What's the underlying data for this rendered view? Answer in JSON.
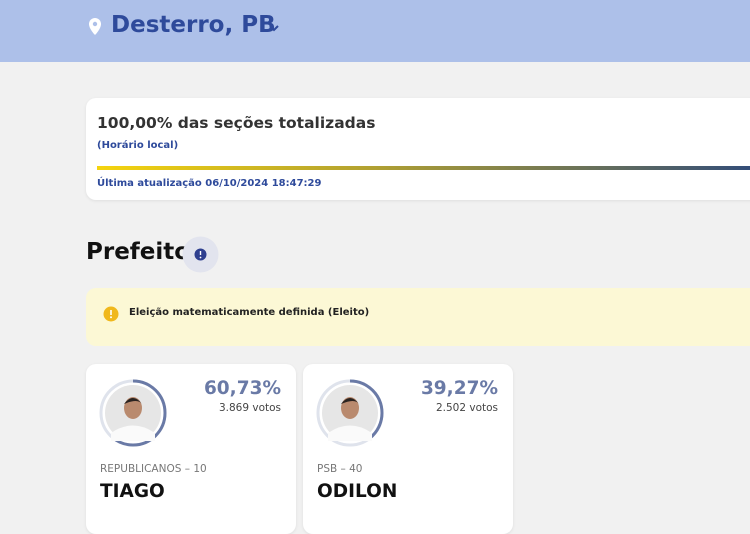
{
  "header": {
    "location": "Desterro, PB"
  },
  "status": {
    "title": "100,00% das seções totalizadas",
    "subtitle": "(Horário local)",
    "last_update": "Última atualização 06/10/2024 18:47:29"
  },
  "section": {
    "title": "Prefeito"
  },
  "notice": {
    "text": "Eleição matematicamente definida (Eleito)"
  },
  "candidates": [
    {
      "percent": "60,73%",
      "votes": "3.869 votos",
      "party": "REPUBLICANOS – 10",
      "name": "TIAGO"
    },
    {
      "percent": "39,27%",
      "votes": "2.502 votos",
      "party": "PSB – 40",
      "name": "ODILON"
    }
  ]
}
